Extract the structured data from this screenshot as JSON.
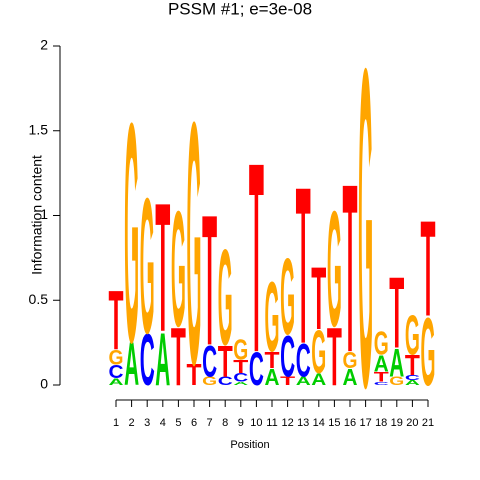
{
  "chart_data": {
    "type": "logo",
    "title": "PSSM #1; e=3e-08",
    "title_color": "#00ee00",
    "xlabel": "Position",
    "ylabel": "Information content",
    "categories": [
      "1",
      "2",
      "3",
      "4",
      "5",
      "6",
      "7",
      "8",
      "9",
      "10",
      "11",
      "12",
      "13",
      "14",
      "15",
      "16",
      "17",
      "18",
      "19",
      "20",
      "21"
    ],
    "ylim": [
      0,
      2
    ],
    "yticks": [
      0,
      0.5,
      1,
      1.5,
      2
    ],
    "colors": {
      "A": "#00cc00",
      "C": "#0000ff",
      "G": "#ffa500",
      "T": "#ff0000"
    },
    "stacks": [
      {
        "letters": [
          "A",
          "C",
          "G",
          "T"
        ],
        "values": [
          0.04,
          0.08,
          0.09,
          0.36
        ]
      },
      {
        "letters": [
          "A",
          "G"
        ],
        "values": [
          0.26,
          1.33
        ]
      },
      {
        "letters": [
          "C",
          "G"
        ],
        "values": [
          0.31,
          0.82
        ]
      },
      {
        "letters": [
          "A",
          "T"
        ],
        "values": [
          0.32,
          0.78
        ]
      },
      {
        "letters": [
          "T",
          "G"
        ],
        "values": [
          0.35,
          0.7
        ]
      },
      {
        "letters": [
          "T",
          "G"
        ],
        "values": [
          0.13,
          1.47
        ]
      },
      {
        "letters": [
          "G",
          "C",
          "T"
        ],
        "values": [
          0.05,
          0.19,
          0.79
        ]
      },
      {
        "letters": [
          "C",
          "T",
          "G"
        ],
        "values": [
          0.05,
          0.19,
          0.58
        ]
      },
      {
        "letters": [
          "A",
          "C",
          "T",
          "G"
        ],
        "values": [
          0.02,
          0.05,
          0.08,
          0.12
        ]
      },
      {
        "letters": [
          "C",
          "T"
        ],
        "values": [
          0.2,
          1.15
        ]
      },
      {
        "letters": [
          "A",
          "T",
          "G"
        ],
        "values": [
          0.1,
          0.1,
          0.42
        ]
      },
      {
        "letters": [
          "T",
          "C",
          "G"
        ],
        "values": [
          0.05,
          0.25,
          0.46
        ]
      },
      {
        "letters": [
          "A",
          "C",
          "T"
        ],
        "values": [
          0.05,
          0.2,
          0.95
        ]
      },
      {
        "letters": [
          "A",
          "G",
          "T"
        ],
        "values": [
          0.07,
          0.26,
          0.38
        ]
      },
      {
        "letters": [
          "T",
          "G"
        ],
        "values": [
          0.35,
          0.7
        ]
      },
      {
        "letters": [
          "A",
          "G",
          "T"
        ],
        "values": [
          0.1,
          0.1,
          1.02
        ]
      },
      {
        "letters": [
          "G"
        ],
        "values": [
          1.93
        ]
      },
      {
        "letters": [
          "C",
          "T",
          "A",
          "G"
        ],
        "values": [
          0.02,
          0.06,
          0.1,
          0.14
        ]
      },
      {
        "letters": [
          "G",
          "A",
          "T"
        ],
        "values": [
          0.05,
          0.17,
          0.43
        ]
      },
      {
        "letters": [
          "A",
          "C",
          "T",
          "G"
        ],
        "values": [
          0.03,
          0.03,
          0.12,
          0.24
        ]
      },
      {
        "letters": [
          "G",
          "T"
        ],
        "values": [
          0.41,
          0.58
        ]
      }
    ]
  }
}
